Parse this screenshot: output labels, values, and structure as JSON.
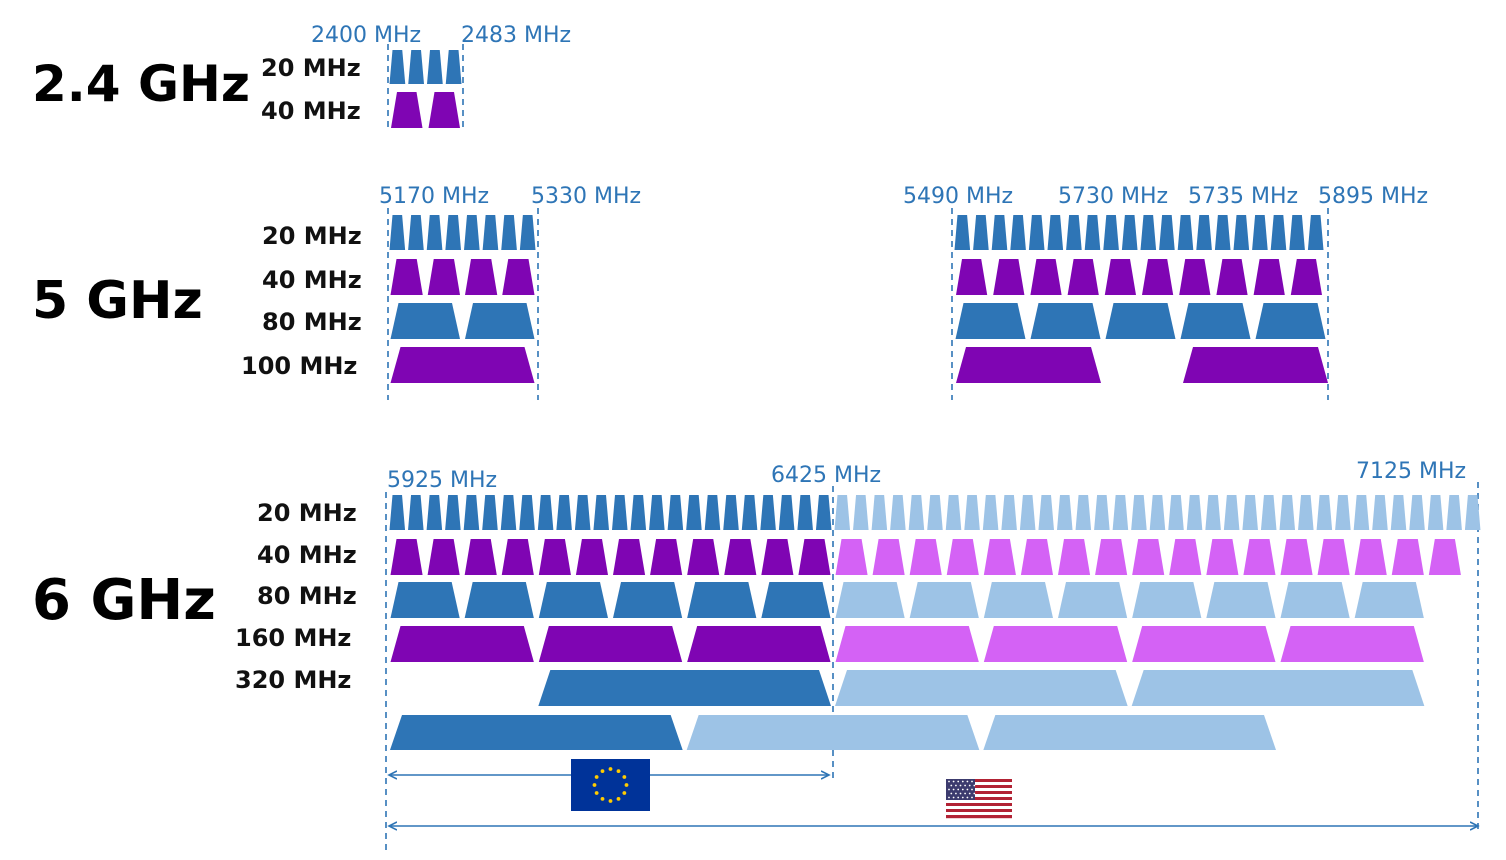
{
  "colors": {
    "blue": "#2e75b6",
    "purple": "#7f05b3",
    "light_blue": "#9dc3e6",
    "light_purple": "#d462f5",
    "frequency_text": "#2e75b6",
    "guide_line": "#2e75b6"
  },
  "bands": [
    {
      "id": "band-2-4",
      "title": "2.4 GHz",
      "frequency_labels": [
        "2400 MHz",
        "2483 MHz"
      ],
      "rows": [
        {
          "label": "20 MHz",
          "channels": 4,
          "color": "blue"
        },
        {
          "label": "40 MHz",
          "channels": 2,
          "color": "purple"
        }
      ]
    },
    {
      "id": "band-5",
      "title": "5 GHz",
      "frequency_labels": [
        "5170 MHz",
        "5330 MHz",
        "5490 MHz",
        "5730 MHz",
        "5735 MHz",
        "5895 MHz"
      ],
      "rows": [
        {
          "label": "20 MHz",
          "lower_channels": 8,
          "upper_channels": 20,
          "color": "blue"
        },
        {
          "label": "40 MHz",
          "lower_channels": 4,
          "upper_channels": 10,
          "color": "purple"
        },
        {
          "label": "80 MHz",
          "lower_channels": 2,
          "upper_channels": 5,
          "color": "blue"
        },
        {
          "label": "100 MHz",
          "lower_channels": 1,
          "upper_channels": 2,
          "color": "purple"
        }
      ]
    },
    {
      "id": "band-6",
      "title": "6 GHz",
      "frequency_labels": [
        "5925 MHz",
        "6425 MHz",
        "7125 MHz"
      ],
      "rows": [
        {
          "label": "20 MHz",
          "lower_channels": 24,
          "upper_channels": 35,
          "color": "blue",
          "upper_color": "light_blue"
        },
        {
          "label": "40 MHz",
          "lower_channels": 12,
          "upper_channels": 17,
          "color": "purple",
          "upper_color": "light_purple"
        },
        {
          "label": "80 MHz",
          "lower_channels": 6,
          "upper_channels": 8,
          "color": "blue",
          "upper_color": "light_blue"
        },
        {
          "label": "160 MHz",
          "lower_channels": 3,
          "upper_channels": 4,
          "color": "purple",
          "upper_color": "light_purple"
        },
        {
          "label": "320 MHz",
          "lower_channels": 1,
          "upper_channels": 2,
          "color": "blue",
          "upper_color": "light_blue",
          "second_row": {
            "lower_channels": 1,
            "upper_channels": 2
          }
        }
      ],
      "regions": [
        {
          "name": "eu-flag",
          "span": "5925-6425 MHz"
        },
        {
          "name": "us-flag",
          "span": "5925-7125 MHz"
        }
      ]
    }
  ]
}
